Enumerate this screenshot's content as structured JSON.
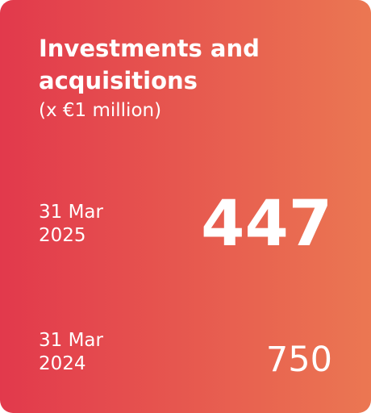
{
  "card": {
    "title": "Investments and acquisitions",
    "unit": "(x €1 million)",
    "current": {
      "date_line1": "31 Mar",
      "date_line2": "2025",
      "value": "447"
    },
    "prior": {
      "date_line1": "31 Mar",
      "date_line2": "2024",
      "value": "750"
    },
    "colors": {
      "gradient_start": "#e2394c",
      "gradient_end": "#eb7752",
      "text": "#ffffff"
    }
  }
}
